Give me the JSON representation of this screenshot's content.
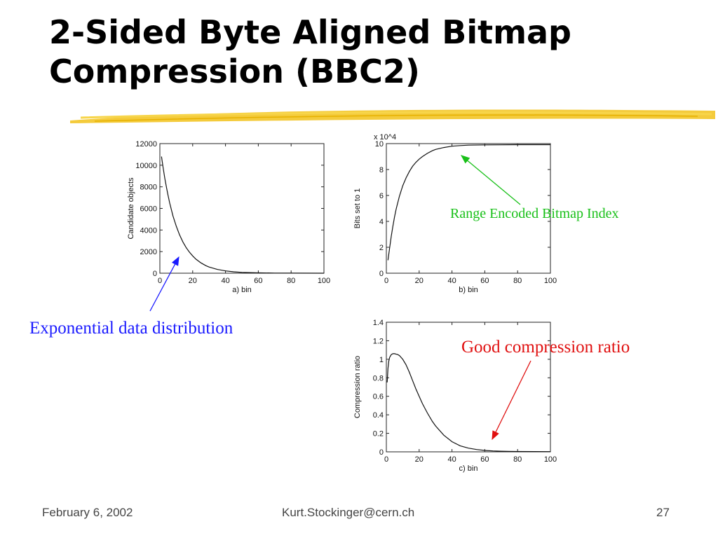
{
  "slide": {
    "title_line1": "2-Sided Byte Aligned Bitmap",
    "title_line2": "Compression (BBC2)",
    "footer_date": "February 6, 2002",
    "footer_email": "Kurt.Stockinger@cern.ch",
    "footer_page": "27"
  },
  "annotations": {
    "exponential": {
      "text": "Exponential data distribution",
      "color": "#1a1aff"
    },
    "range_encoded": {
      "text": "Range Encoded Bitmap Index",
      "color": "#19c019"
    },
    "good_compression": {
      "text": "Good compression ratio",
      "color": "#e01010"
    }
  },
  "chart_data": [
    {
      "type": "line",
      "xlabel": "a) bin",
      "ylabel": "Candidate objects",
      "xlim": [
        0,
        100
      ],
      "ylim": [
        0,
        12000
      ],
      "xticks": [
        0,
        20,
        40,
        60,
        80,
        100
      ],
      "yticks": [
        0,
        2000,
        4000,
        6000,
        8000,
        10000,
        12000
      ],
      "x": [
        1,
        2,
        3,
        4,
        5,
        6,
        8,
        10,
        12,
        14,
        16,
        18,
        20,
        22,
        25,
        28,
        30,
        35,
        40,
        45,
        50,
        60,
        70,
        80,
        100
      ],
      "y": [
        10800,
        9750,
        8800,
        7950,
        7200,
        6500,
        5300,
        4350,
        3550,
        2900,
        2380,
        1950,
        1600,
        1300,
        960,
        700,
        570,
        350,
        215,
        130,
        80,
        30,
        11,
        4,
        0
      ]
    },
    {
      "type": "line",
      "xlabel": "b) bin",
      "ylabel": "Bits set to 1",
      "y_multiplier": "x 10^4",
      "xlim": [
        0,
        100
      ],
      "ylim": [
        0,
        10
      ],
      "xticks": [
        0,
        20,
        40,
        60,
        80,
        100
      ],
      "yticks": [
        0,
        2,
        4,
        6,
        8,
        10
      ],
      "x": [
        1,
        2,
        3,
        4,
        5,
        6,
        8,
        10,
        12,
        14,
        16,
        18,
        20,
        22,
        25,
        28,
        30,
        35,
        40,
        45,
        50,
        60,
        70,
        80,
        100
      ],
      "y": [
        1.0,
        1.95,
        2.85,
        3.65,
        4.35,
        4.95,
        5.95,
        6.75,
        7.35,
        7.85,
        8.25,
        8.55,
        8.8,
        9.0,
        9.25,
        9.45,
        9.55,
        9.7,
        9.8,
        9.85,
        9.88,
        9.9,
        9.91,
        9.92,
        9.92
      ]
    },
    {
      "type": "line",
      "xlabel": "c) bin",
      "ylabel": "Compression ratio",
      "xlim": [
        0,
        100
      ],
      "ylim": [
        0,
        1.4
      ],
      "xticks": [
        0,
        20,
        40,
        60,
        80,
        100
      ],
      "yticks": [
        0,
        0.2,
        0.4,
        0.6,
        0.8,
        1,
        1.2,
        1.4
      ],
      "x": [
        0.5,
        1,
        1.5,
        2,
        3,
        4,
        5,
        6,
        7,
        8,
        10,
        12,
        14,
        16,
        18,
        20,
        22,
        25,
        28,
        30,
        35,
        40,
        45,
        50,
        55,
        60,
        65,
        70,
        75,
        80,
        100
      ],
      "y": [
        0.75,
        0.9,
        0.98,
        1.02,
        1.05,
        1.06,
        1.06,
        1.055,
        1.05,
        1.04,
        1.0,
        0.94,
        0.86,
        0.77,
        0.68,
        0.6,
        0.52,
        0.42,
        0.33,
        0.28,
        0.18,
        0.11,
        0.065,
        0.04,
        0.025,
        0.015,
        0.01,
        0.007,
        0.005,
        0.004,
        0.002
      ]
    }
  ]
}
